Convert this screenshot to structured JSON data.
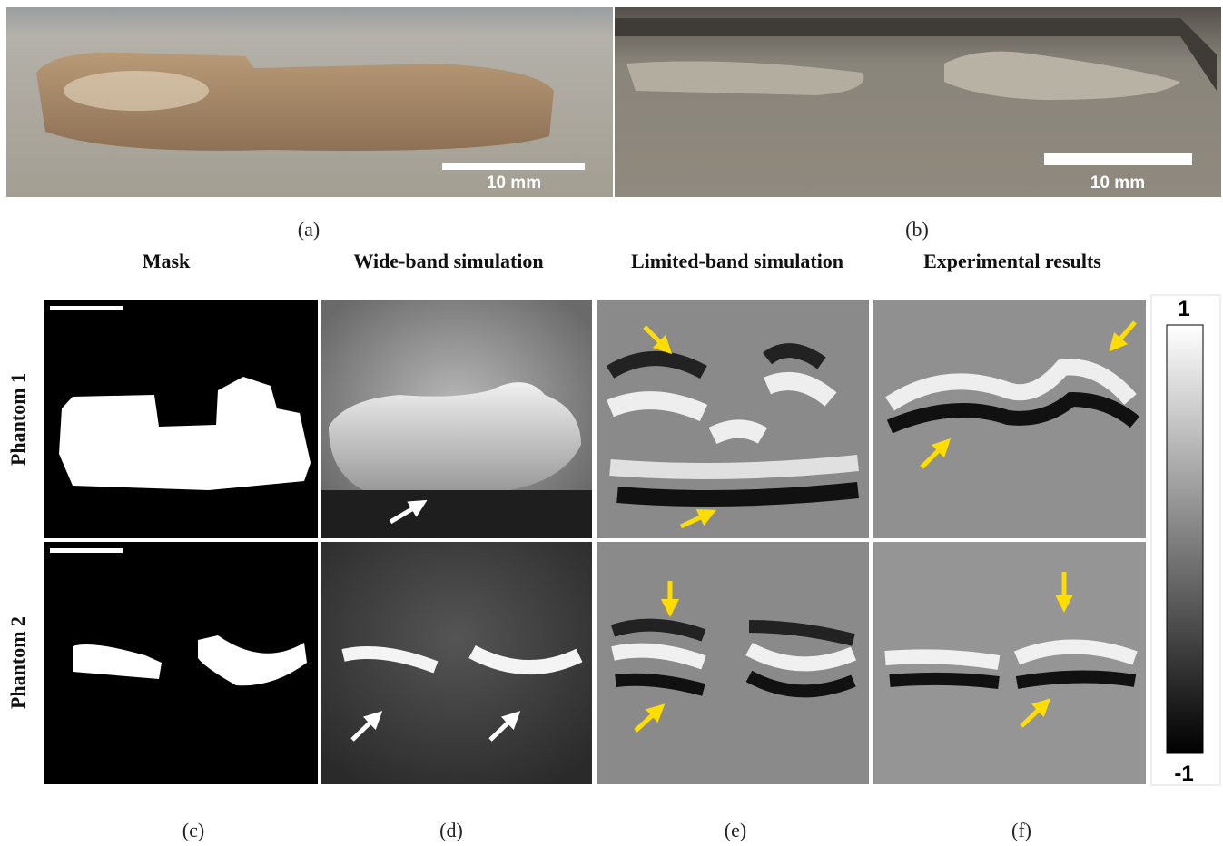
{
  "panels": {
    "a": {
      "label": "(a)",
      "scale_bar": "10 mm"
    },
    "b": {
      "label": "(b)",
      "scale_bar": "10 mm"
    },
    "c": {
      "label": "(c)",
      "header": "Mask"
    },
    "d": {
      "label": "(d)",
      "header": "Wide-band simulation"
    },
    "e": {
      "label": "(e)",
      "header": "Limited-band simulation"
    },
    "f": {
      "label": "(f)",
      "header": "Experimental results"
    }
  },
  "rows": [
    "Phantom 1",
    "Phantom 2"
  ],
  "colorbar": {
    "max_label": "1",
    "min_label": "-1"
  }
}
